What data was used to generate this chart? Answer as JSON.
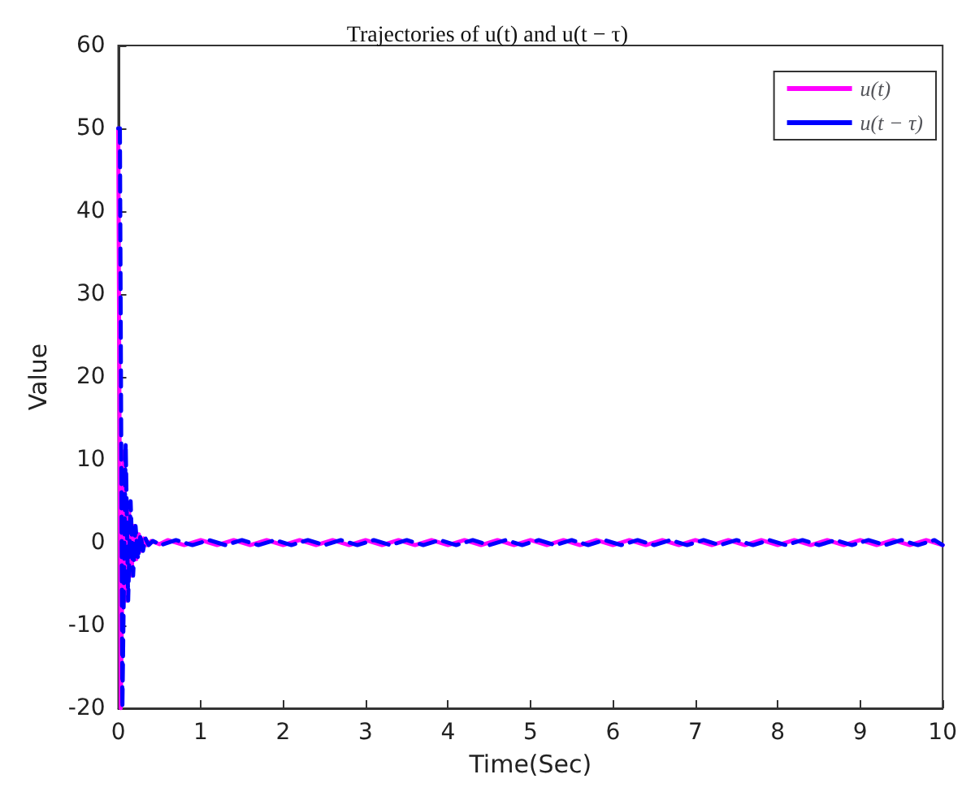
{
  "chart_data": {
    "type": "line",
    "title": "Trajectories of u(t) and u(t − τ)",
    "xlabel": "Time(Sec)",
    "ylabel": "Value",
    "xlim": [
      0,
      10
    ],
    "xticks": [
      0,
      1,
      2,
      3,
      4,
      5,
      6,
      7,
      8,
      9,
      10
    ],
    "ylim": [
      -20,
      60
    ],
    "yticks": [
      -20,
      -10,
      0,
      10,
      20,
      30,
      40,
      50,
      60
    ],
    "grid": false,
    "legend": "top right",
    "marker": "none",
    "series": [
      {
        "name": "u(t)",
        "color": "#ff00ff",
        "line_style": "solid",
        "x": [
          0,
          0.03,
          0.07,
          0.1,
          0.13,
          0.16,
          0.19,
          0.22,
          0.25,
          0.28,
          0.31,
          0.35,
          0.4,
          0.5,
          0.6,
          0.8,
          1,
          1.2,
          1.4,
          1.6,
          1.8,
          2,
          2.2,
          2.4,
          2.6,
          2.8,
          3,
          3.2,
          3.4,
          3.6,
          3.8,
          4,
          4.2,
          4.4,
          4.6,
          4.8,
          5,
          5.2,
          5.4,
          5.6,
          5.8,
          6,
          6.2,
          6.4,
          6.6,
          6.8,
          7,
          7.2,
          7.4,
          7.6,
          7.8,
          8,
          8.2,
          8.4,
          8.6,
          8.8,
          9,
          9.2,
          9.4,
          9.6,
          9.8,
          10
        ],
        "values": [
          50,
          -20,
          11,
          -7,
          4,
          -4,
          2,
          -2,
          1,
          -1,
          0.5,
          -0.3,
          0.2,
          -0.2,
          0.3,
          -0.3,
          0.3,
          -0.3,
          0.3,
          -0.3,
          0.3,
          -0.3,
          0.3,
          -0.3,
          0.3,
          -0.3,
          0.3,
          -0.3,
          0.3,
          -0.3,
          0.3,
          -0.3,
          0.3,
          -0.3,
          0.3,
          -0.3,
          0.3,
          -0.3,
          0.3,
          -0.3,
          0.3,
          -0.3,
          0.3,
          -0.3,
          0.3,
          -0.3,
          0.3,
          -0.3,
          0.3,
          -0.3,
          0.3,
          -0.3,
          0.3,
          -0.3,
          0.3,
          -0.3,
          0.3,
          -0.3,
          0.3,
          -0.3,
          0.3,
          -0.3
        ]
      },
      {
        "name": "u(t − τ)",
        "color": "#0000ff",
        "line_style": "dashed",
        "x": [
          0,
          0.02,
          0.05,
          0.09,
          0.12,
          0.15,
          0.18,
          0.21,
          0.24,
          0.27,
          0.3,
          0.33,
          0.37,
          0.42,
          0.52,
          0.7,
          0.9,
          1.1,
          1.3,
          1.5,
          1.7,
          1.9,
          2.1,
          2.3,
          2.5,
          2.7,
          2.9,
          3.1,
          3.3,
          3.5,
          3.7,
          3.9,
          4.1,
          4.3,
          4.5,
          4.7,
          4.9,
          5.1,
          5.3,
          5.5,
          5.7,
          5.9,
          6.1,
          6.3,
          6.5,
          6.7,
          6.9,
          7.1,
          7.3,
          7.5,
          7.7,
          7.9,
          8.1,
          8.3,
          8.5,
          8.7,
          8.9,
          9.1,
          9.3,
          9.5,
          9.7,
          9.9,
          10
        ],
        "values": [
          50,
          50,
          -20,
          12,
          -7,
          5,
          -4,
          2,
          -2,
          1,
          -1,
          0.5,
          -0.3,
          0.2,
          -0.3,
          0.3,
          -0.3,
          0.3,
          -0.3,
          0.3,
          -0.3,
          0.3,
          -0.3,
          0.3,
          -0.3,
          0.3,
          -0.3,
          0.3,
          -0.3,
          0.3,
          -0.3,
          0.3,
          -0.3,
          0.3,
          -0.3,
          0.3,
          -0.3,
          0.3,
          -0.3,
          0.3,
          -0.3,
          0.3,
          -0.3,
          0.3,
          -0.3,
          0.3,
          -0.3,
          0.3,
          -0.3,
          0.3,
          -0.3,
          0.3,
          -0.3,
          0.3,
          -0.3,
          0.3,
          -0.3,
          0.3,
          -0.3,
          0.3,
          -0.3,
          0.3,
          -0.3
        ]
      }
    ]
  }
}
